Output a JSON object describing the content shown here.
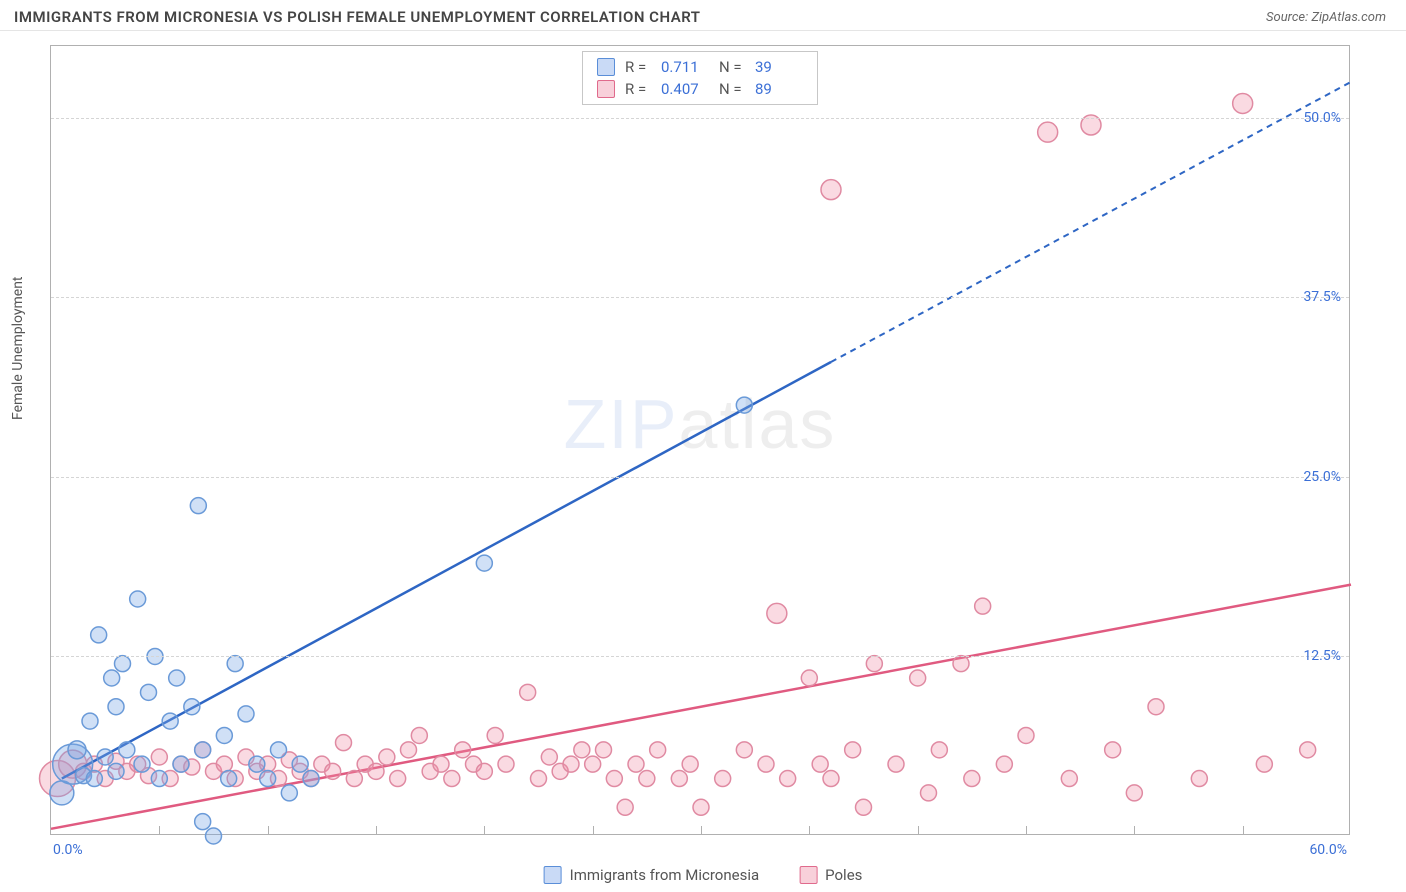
{
  "header": {
    "title": "IMMIGRANTS FROM MICRONESIA VS POLISH FEMALE UNEMPLOYMENT CORRELATION CHART",
    "source_prefix": "Source: ",
    "source_name": "ZipAtlas.com"
  },
  "chart": {
    "type": "scatter",
    "y_axis_label": "Female Unemployment",
    "xlim": [
      0,
      60
    ],
    "ylim": [
      0,
      55
    ],
    "y_ticks": [
      {
        "value": 12.5,
        "label": "12.5%"
      },
      {
        "value": 25.0,
        "label": "25.0%"
      },
      {
        "value": 37.5,
        "label": "37.5%"
      },
      {
        "value": 50.0,
        "label": "50.0%"
      }
    ],
    "x_tick_min_label": "0.0%",
    "x_tick_max_label": "60.0%",
    "x_minor_tick_positions": [
      5,
      10,
      15,
      20,
      25,
      30,
      35,
      40,
      45,
      50,
      55
    ],
    "background_color": "#ffffff",
    "grid_color": "#d5d5d5",
    "series": [
      {
        "name": "Immigrants from Micronesia",
        "color_fill": "rgba(120,165,230,0.35)",
        "color_stroke": "#6a9ad8",
        "trend_color": "#2e66c4",
        "trend_dash_color": "#2e66c4",
        "stats": {
          "R": "0.711",
          "N": "39"
        },
        "trend": {
          "x1": 0.5,
          "y1": 4,
          "x2": 36,
          "y2": 33,
          "x2_ext": 60,
          "y2_ext": 52.5
        },
        "points": [
          {
            "x": 0.5,
            "y": 3,
            "r": 12
          },
          {
            "x": 1,
            "y": 5,
            "r": 20
          },
          {
            "x": 1.2,
            "y": 6,
            "r": 9
          },
          {
            "x": 1.5,
            "y": 4.2,
            "r": 8
          },
          {
            "x": 1.8,
            "y": 8,
            "r": 8
          },
          {
            "x": 2,
            "y": 4,
            "r": 8
          },
          {
            "x": 2.2,
            "y": 14,
            "r": 8
          },
          {
            "x": 2.5,
            "y": 5.5,
            "r": 8
          },
          {
            "x": 2.8,
            "y": 11,
            "r": 8
          },
          {
            "x": 3,
            "y": 9,
            "r": 8
          },
          {
            "x": 3,
            "y": 4.5,
            "r": 8
          },
          {
            "x": 3.3,
            "y": 12,
            "r": 8
          },
          {
            "x": 3.5,
            "y": 6,
            "r": 8
          },
          {
            "x": 4,
            "y": 16.5,
            "r": 8
          },
          {
            "x": 4.2,
            "y": 5,
            "r": 8
          },
          {
            "x": 4.5,
            "y": 10,
            "r": 8
          },
          {
            "x": 4.8,
            "y": 12.5,
            "r": 8
          },
          {
            "x": 5,
            "y": 4,
            "r": 8
          },
          {
            "x": 5.5,
            "y": 8,
            "r": 8
          },
          {
            "x": 5.8,
            "y": 11,
            "r": 8
          },
          {
            "x": 6,
            "y": 5,
            "r": 8
          },
          {
            "x": 6.5,
            "y": 9,
            "r": 8
          },
          {
            "x": 6.8,
            "y": 23,
            "r": 8
          },
          {
            "x": 7,
            "y": 1,
            "r": 8
          },
          {
            "x": 7,
            "y": 6,
            "r": 8
          },
          {
            "x": 7.5,
            "y": 0,
            "r": 8
          },
          {
            "x": 8,
            "y": 7,
            "r": 8
          },
          {
            "x": 8.2,
            "y": 4,
            "r": 8
          },
          {
            "x": 8.5,
            "y": 12,
            "r": 8
          },
          {
            "x": 9,
            "y": 8.5,
            "r": 8
          },
          {
            "x": 9.5,
            "y": 5,
            "r": 8
          },
          {
            "x": 10,
            "y": 4,
            "r": 8
          },
          {
            "x": 10.5,
            "y": 6,
            "r": 8
          },
          {
            "x": 11,
            "y": 3,
            "r": 8
          },
          {
            "x": 11.5,
            "y": 5,
            "r": 8
          },
          {
            "x": 12,
            "y": 4,
            "r": 8
          },
          {
            "x": 20,
            "y": 19,
            "r": 8
          },
          {
            "x": 32,
            "y": 30,
            "r": 8
          }
        ]
      },
      {
        "name": "Poles",
        "color_fill": "rgba(240,140,165,0.32)",
        "color_stroke": "#e08aa2",
        "trend_color": "#e05a80",
        "stats": {
          "R": "0.407",
          "N": "89"
        },
        "trend": {
          "x1": 0,
          "y1": 0.5,
          "x2": 60,
          "y2": 17.5
        },
        "points": [
          {
            "x": 0.3,
            "y": 4,
            "r": 18
          },
          {
            "x": 1,
            "y": 5,
            "r": 14
          },
          {
            "x": 1.5,
            "y": 4.5,
            "r": 8
          },
          {
            "x": 2,
            "y": 5,
            "r": 8
          },
          {
            "x": 2.5,
            "y": 4,
            "r": 8
          },
          {
            "x": 3,
            "y": 5.2,
            "r": 8
          },
          {
            "x": 3.5,
            "y": 4.5,
            "r": 8
          },
          {
            "x": 4,
            "y": 5,
            "r": 8
          },
          {
            "x": 4.5,
            "y": 4.2,
            "r": 8
          },
          {
            "x": 5,
            "y": 5.5,
            "r": 8
          },
          {
            "x": 5.5,
            "y": 4,
            "r": 8
          },
          {
            "x": 6,
            "y": 5,
            "r": 8
          },
          {
            "x": 6.5,
            "y": 4.8,
            "r": 8
          },
          {
            "x": 7,
            "y": 6,
            "r": 8
          },
          {
            "x": 7.5,
            "y": 4.5,
            "r": 8
          },
          {
            "x": 8,
            "y": 5,
            "r": 8
          },
          {
            "x": 8.5,
            "y": 4,
            "r": 8
          },
          {
            "x": 9,
            "y": 5.5,
            "r": 8
          },
          {
            "x": 9.5,
            "y": 4.5,
            "r": 8
          },
          {
            "x": 10,
            "y": 5,
            "r": 8
          },
          {
            "x": 10.5,
            "y": 4,
            "r": 8
          },
          {
            "x": 11,
            "y": 5.3,
            "r": 8
          },
          {
            "x": 11.5,
            "y": 4.5,
            "r": 8
          },
          {
            "x": 12,
            "y": 4,
            "r": 8
          },
          {
            "x": 12.5,
            "y": 5,
            "r": 8
          },
          {
            "x": 13,
            "y": 4.5,
            "r": 8
          },
          {
            "x": 13.5,
            "y": 6.5,
            "r": 8
          },
          {
            "x": 14,
            "y": 4,
            "r": 8
          },
          {
            "x": 14.5,
            "y": 5,
            "r": 8
          },
          {
            "x": 15,
            "y": 4.5,
            "r": 8
          },
          {
            "x": 15.5,
            "y": 5.5,
            "r": 8
          },
          {
            "x": 16,
            "y": 4,
            "r": 8
          },
          {
            "x": 16.5,
            "y": 6,
            "r": 8
          },
          {
            "x": 17,
            "y": 7,
            "r": 8
          },
          {
            "x": 17.5,
            "y": 4.5,
            "r": 8
          },
          {
            "x": 18,
            "y": 5,
            "r": 8
          },
          {
            "x": 18.5,
            "y": 4,
            "r": 8
          },
          {
            "x": 19,
            "y": 6,
            "r": 8
          },
          {
            "x": 19.5,
            "y": 5,
            "r": 8
          },
          {
            "x": 20,
            "y": 4.5,
            "r": 8
          },
          {
            "x": 20.5,
            "y": 7,
            "r": 8
          },
          {
            "x": 21,
            "y": 5,
            "r": 8
          },
          {
            "x": 22,
            "y": 10,
            "r": 8
          },
          {
            "x": 22.5,
            "y": 4,
            "r": 8
          },
          {
            "x": 23,
            "y": 5.5,
            "r": 8
          },
          {
            "x": 23.5,
            "y": 4.5,
            "r": 8
          },
          {
            "x": 24,
            "y": 5,
            "r": 8
          },
          {
            "x": 24.5,
            "y": 6,
            "r": 8
          },
          {
            "x": 25,
            "y": 5,
            "r": 8
          },
          {
            "x": 25.5,
            "y": 6,
            "r": 8
          },
          {
            "x": 26,
            "y": 4,
            "r": 8
          },
          {
            "x": 26.5,
            "y": 2,
            "r": 8
          },
          {
            "x": 27,
            "y": 5,
            "r": 8
          },
          {
            "x": 27.5,
            "y": 4,
            "r": 8
          },
          {
            "x": 28,
            "y": 6,
            "r": 8
          },
          {
            "x": 29,
            "y": 4,
            "r": 8
          },
          {
            "x": 29.5,
            "y": 5,
            "r": 8
          },
          {
            "x": 30,
            "y": 2,
            "r": 8
          },
          {
            "x": 31,
            "y": 4,
            "r": 8
          },
          {
            "x": 32,
            "y": 6,
            "r": 8
          },
          {
            "x": 33,
            "y": 5,
            "r": 8
          },
          {
            "x": 33.5,
            "y": 15.5,
            "r": 10
          },
          {
            "x": 34,
            "y": 4,
            "r": 8
          },
          {
            "x": 35,
            "y": 11,
            "r": 8
          },
          {
            "x": 35.5,
            "y": 5,
            "r": 8
          },
          {
            "x": 36,
            "y": 4,
            "r": 8
          },
          {
            "x": 36,
            "y": 45,
            "r": 10
          },
          {
            "x": 37,
            "y": 6,
            "r": 8
          },
          {
            "x": 37.5,
            "y": 2,
            "r": 8
          },
          {
            "x": 38,
            "y": 12,
            "r": 8
          },
          {
            "x": 39,
            "y": 5,
            "r": 8
          },
          {
            "x": 40,
            "y": 11,
            "r": 8
          },
          {
            "x": 40.5,
            "y": 3,
            "r": 8
          },
          {
            "x": 41,
            "y": 6,
            "r": 8
          },
          {
            "x": 42,
            "y": 12,
            "r": 8
          },
          {
            "x": 42.5,
            "y": 4,
            "r": 8
          },
          {
            "x": 43,
            "y": 16,
            "r": 8
          },
          {
            "x": 44,
            "y": 5,
            "r": 8
          },
          {
            "x": 45,
            "y": 7,
            "r": 8
          },
          {
            "x": 46,
            "y": 49,
            "r": 10
          },
          {
            "x": 47,
            "y": 4,
            "r": 8
          },
          {
            "x": 48,
            "y": 49.5,
            "r": 10
          },
          {
            "x": 49,
            "y": 6,
            "r": 8
          },
          {
            "x": 50,
            "y": 3,
            "r": 8
          },
          {
            "x": 51,
            "y": 9,
            "r": 8
          },
          {
            "x": 53,
            "y": 4,
            "r": 8
          },
          {
            "x": 55,
            "y": 51,
            "r": 10
          },
          {
            "x": 56,
            "y": 5,
            "r": 8
          },
          {
            "x": 58,
            "y": 6,
            "r": 8
          }
        ]
      }
    ],
    "watermark": {
      "text1": "ZIP",
      "text2": "atlas"
    }
  },
  "legend_bottom": [
    {
      "label": "Immigrants from Micronesia",
      "swatch": "blue"
    },
    {
      "label": "Poles",
      "swatch": "pink"
    }
  ]
}
